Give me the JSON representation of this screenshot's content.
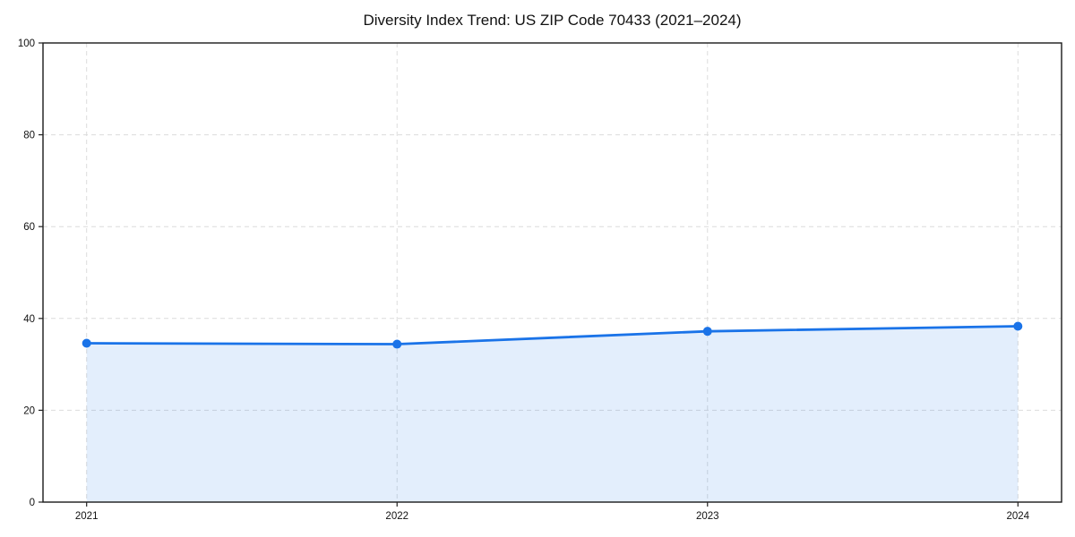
{
  "figure": {
    "background": "#ffffff"
  },
  "chart_data": {
    "type": "area",
    "title": "Diversity Index Trend: US ZIP Code 70433 (2021–2024)",
    "categories": [
      "2021",
      "2022",
      "2023",
      "2024"
    ],
    "series": [
      {
        "name": "Diversity Index",
        "values": [
          34.6,
          34.4,
          37.2,
          38.3
        ]
      }
    ],
    "xlabel": "",
    "ylabel": "",
    "ylim": [
      0,
      100
    ],
    "yticks": [
      0,
      20,
      40,
      60,
      80,
      100
    ],
    "grid": "dashed-both-axes",
    "legend": "none",
    "line_color": "#1a73e8",
    "fill_color": "rgba(26,115,232,0.12)",
    "marker": "circle",
    "marker_radius": 5
  }
}
